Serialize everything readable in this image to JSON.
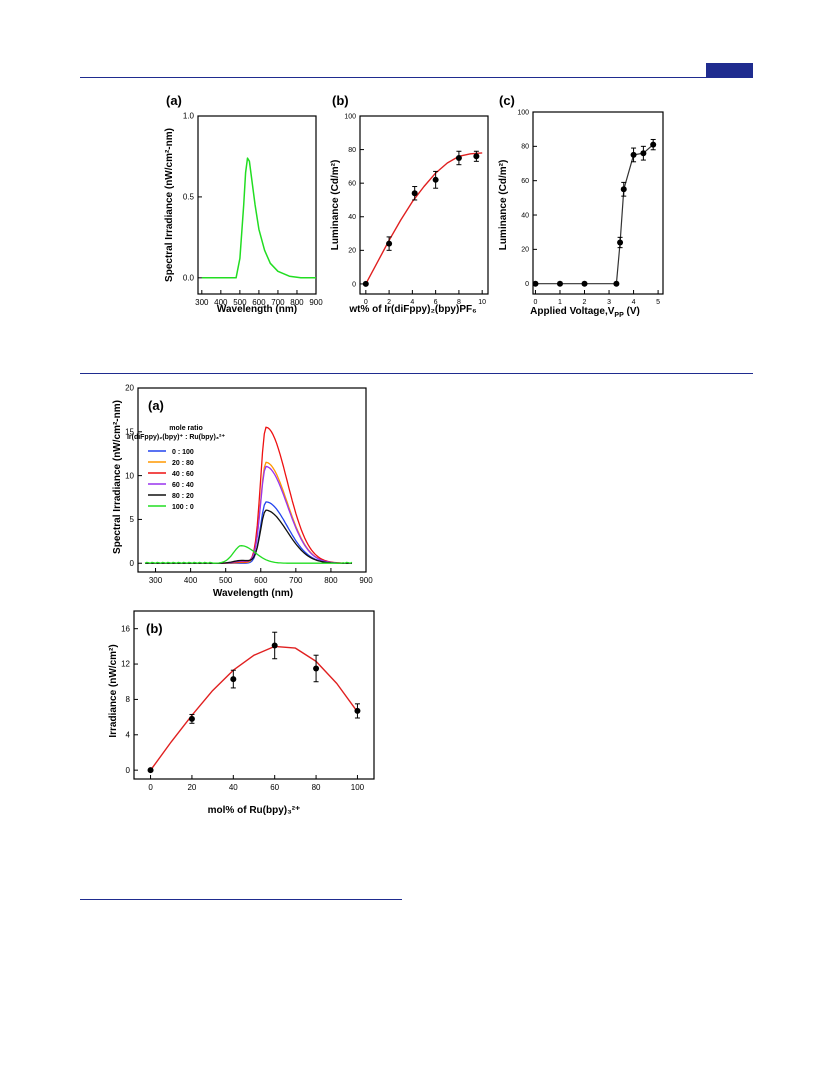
{
  "page": {
    "header_color": "#1f2c8f"
  },
  "chart_data": [
    {
      "id": "fig1a",
      "type": "line",
      "panel_label": "(a)",
      "xlabel": "Wavelength (nm)",
      "ylabel": "Spectral Irradiance (nW/cm²-nm)",
      "xlim": [
        280,
        900
      ],
      "ylim": [
        -0.1,
        1.0
      ],
      "xticks": [
        300,
        400,
        500,
        600,
        700,
        800,
        900
      ],
      "yticks": [
        0.0,
        0.5,
        1.0
      ],
      "ytick_labels": [
        "0.0",
        "0.5",
        "1.0"
      ],
      "series": [
        {
          "color": "#22dd22",
          "x": [
            300,
            400,
            480,
            500,
            520,
            530,
            540,
            550,
            560,
            580,
            600,
            630,
            660,
            700,
            760,
            820,
            900
          ],
          "y": [
            0.0,
            0.0,
            0.0,
            0.12,
            0.45,
            0.65,
            0.74,
            0.72,
            0.63,
            0.45,
            0.3,
            0.17,
            0.09,
            0.04,
            0.01,
            0.0,
            0.0
          ]
        }
      ]
    },
    {
      "id": "fig1b",
      "type": "scatter",
      "panel_label": "(b)",
      "xlabel": "wt% of Ir(diFppy)₂(bpy)PF₆",
      "ylabel": "Luminance (Cd/m²)",
      "xlim": [
        -0.5,
        10.5
      ],
      "ylim": [
        -6,
        100
      ],
      "xticks": [
        0,
        2,
        4,
        6,
        8,
        10
      ],
      "yticks": [
        0,
        20,
        40,
        60,
        80,
        100
      ],
      "series": [
        {
          "color": "#000000",
          "x": [
            0,
            2,
            4.2,
            6,
            8,
            9.5
          ],
          "y": [
            0,
            24,
            54,
            62,
            75,
            76
          ],
          "err": [
            0,
            4,
            4,
            5,
            4,
            3
          ]
        }
      ],
      "fit": {
        "color": "#e02020",
        "x": [
          0,
          1,
          2,
          3,
          4,
          5,
          6,
          7,
          8,
          9,
          10
        ],
        "y": [
          0,
          13,
          26,
          38,
          49,
          58,
          66,
          72,
          76,
          77.5,
          78
        ]
      }
    },
    {
      "id": "fig1c",
      "type": "line",
      "panel_label": "(c)",
      "xlabel": "Applied Voltage,V",
      "xlabel_sub": "PP",
      "xlabel_suffix": " (V)",
      "ylabel": "Luminance (Cd/m²)",
      "xlim": [
        -0.1,
        5.2
      ],
      "ylim": [
        -6,
        100
      ],
      "xticks": [
        0,
        1,
        2,
        3,
        4,
        5
      ],
      "yticks": [
        0,
        20,
        40,
        60,
        80,
        100
      ],
      "series": [
        {
          "color": "#333333",
          "x": [
            0,
            1,
            2,
            3.3,
            3.45,
            3.6,
            4.0,
            4.4,
            4.8
          ],
          "y": [
            0,
            0,
            0,
            0,
            24,
            55,
            75,
            76,
            81
          ],
          "err": [
            0,
            0,
            0,
            0,
            3,
            4,
            4,
            4,
            3
          ]
        }
      ]
    },
    {
      "id": "fig2a",
      "type": "line",
      "panel_label": "(a)",
      "xlabel": "Wavelength (nm)",
      "ylabel": "Spectral Irradiance (nW/cm²-nm)",
      "xlim": [
        250,
        900
      ],
      "ylim": [
        -1,
        20
      ],
      "xticks": [
        300,
        400,
        500,
        600,
        700,
        800,
        900
      ],
      "yticks": [
        0,
        5,
        10,
        15,
        20
      ],
      "legend_title_1": "mole ratio",
      "legend_title_2": "Ir(diFppy)₂(bpy)⁺ : Ru(bpy)₃²⁺",
      "series": [
        {
          "name": "0  :  100",
          "color": "#2244ee",
          "peak": 7.0
        },
        {
          "name": "20  :  80",
          "color": "#ff9900",
          "peak": 11.5
        },
        {
          "name": "40  :  60",
          "color": "#ee1111",
          "peak": 15.5
        },
        {
          "name": "60  :  40",
          "color": "#9933ee",
          "peak": 11.0
        },
        {
          "name": "80  :  20",
          "color": "#111111",
          "peak": 6.0
        },
        {
          "name": "100  :  0",
          "color": "#22dd22",
          "peak": 2.0
        }
      ]
    },
    {
      "id": "fig2b",
      "type": "scatter",
      "panel_label": "(b)",
      "xlabel": "mol% of  Ru(bpy)₃²⁺",
      "ylabel": "Irradiance (nW/cm²)",
      "xlim": [
        -8,
        108
      ],
      "ylim": [
        -1,
        18
      ],
      "xticks": [
        0,
        20,
        40,
        60,
        80,
        100
      ],
      "yticks": [
        0,
        4,
        8,
        12,
        16
      ],
      "series": [
        {
          "color": "#000000",
          "x": [
            0,
            20,
            40,
            60,
            80,
            100
          ],
          "y": [
            0,
            5.8,
            10.3,
            14.1,
            11.5,
            6.7
          ],
          "err": [
            0,
            0.5,
            1.0,
            1.5,
            1.5,
            0.8
          ]
        }
      ],
      "fit": {
        "color": "#e02020",
        "x": [
          0,
          10,
          20,
          30,
          40,
          50,
          60,
          70,
          80,
          90,
          100
        ],
        "y": [
          0,
          3.2,
          6.2,
          9.0,
          11.3,
          13.0,
          14.0,
          13.8,
          12.3,
          9.8,
          6.6
        ]
      }
    }
  ]
}
